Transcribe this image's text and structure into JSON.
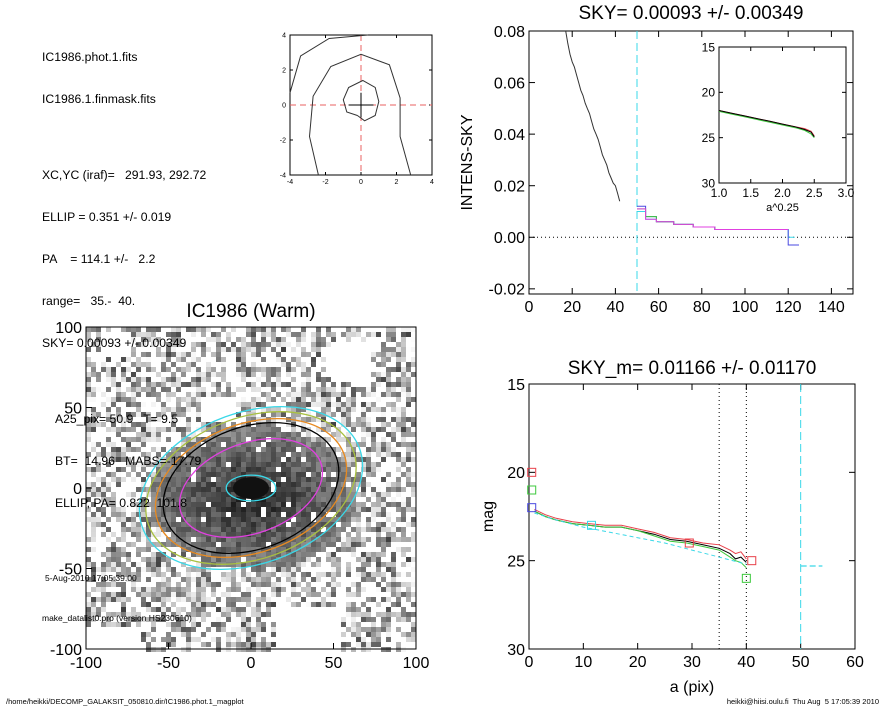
{
  "info": {
    "file1": "IC1986.phot.1.fits",
    "file2": "IC1986.1.finmask.fits",
    "xcyc": "XC,YC (iraf)=   291.93, 292.72",
    "ellip": "ELLIP = 0.351 +/- 0.019",
    "pa": "PA    = 114.1 +/-   2.2",
    "range": "range=   35.-  40.",
    "sky": "SKY= 0.00093 +/- 0.00349",
    "a25": "A25_pix= 50.9   T= 9.5",
    "bt": "BT=  14.96   MABS=-17.79",
    "ellip_pa": "ELLIP, PA= 0.822  101.8",
    "date": "5-Aug-2010 17:05:39.00",
    "program": "make_datalist0.pro (version HS230610)"
  },
  "footer": {
    "path": "/home/heikki/DECOMP_GALAKSIT_050810.dir/IC1986.phot.1_magplot",
    "user": "heikki@hiisi.oulu.fi  Thu Aug  5 17:05:39 2010"
  },
  "colors": {
    "cyan": "#3ad8e8",
    "red": "#e8404a",
    "green": "#3cc83c",
    "blue": "#4a4ae0",
    "orange": "#e88a20",
    "magenta": "#e040e0",
    "olive": "#a8c040",
    "gray": "#777777"
  },
  "chart_data": [
    {
      "id": "center-contour",
      "type": "line",
      "xlim": [
        -4,
        4
      ],
      "ylim": [
        -4,
        4
      ],
      "xticks": [
        "-4",
        "-2",
        "0",
        "2",
        "4"
      ],
      "yticks": [
        "-4",
        "-2",
        "0",
        "2",
        "4"
      ],
      "crosshair": [
        0,
        0
      ],
      "contours": [
        [
          [
            -0.2,
            -0.6
          ],
          [
            -0.8,
            -0.4
          ],
          [
            -1.0,
            0.3
          ],
          [
            -0.7,
            1.0
          ],
          [
            0.1,
            1.4
          ],
          [
            0.8,
            1.0
          ],
          [
            1.0,
            0.2
          ],
          [
            0.8,
            -0.6
          ],
          [
            0.2,
            -0.9
          ],
          [
            -0.2,
            -0.6
          ]
        ],
        [
          [
            -2.4,
            -4.0
          ],
          [
            -2.9,
            -1.8
          ],
          [
            -2.7,
            0.5
          ],
          [
            -1.7,
            2.2
          ],
          [
            0.0,
            2.9
          ],
          [
            1.6,
            2.3
          ],
          [
            2.2,
            0.4
          ],
          [
            2.2,
            -1.8
          ],
          [
            2.8,
            -4.0
          ]
        ],
        [
          [
            -4.0,
            0.7
          ],
          [
            -3.4,
            2.8
          ],
          [
            -1.8,
            3.8
          ],
          [
            0.4,
            4.0
          ]
        ]
      ]
    },
    {
      "id": "intensity-profile",
      "type": "line",
      "title": "SKY= 0.00093 +/- 0.00349",
      "xlabel": "",
      "ylabel": "INTENS-SKY",
      "xlim": [
        0,
        150
      ],
      "ylim": [
        -0.022,
        0.08
      ],
      "xticks": [
        "0",
        "20",
        "40",
        "60",
        "80",
        "100",
        "120",
        "140"
      ],
      "yticks": [
        "-0.02",
        "0.00",
        "0.02",
        "0.04",
        "0.06",
        "0.08"
      ],
      "sky_cut_x": 50,
      "profile": {
        "x": [
          17,
          18,
          19,
          20,
          21,
          22,
          23,
          24,
          25,
          26,
          27,
          28,
          29,
          30,
          31,
          32,
          33,
          34,
          35,
          36,
          37,
          38,
          39,
          40,
          41,
          42
        ],
        "y": [
          0.08,
          0.075,
          0.071,
          0.068,
          0.066,
          0.063,
          0.06,
          0.057,
          0.055,
          0.052,
          0.05,
          0.048,
          0.045,
          0.042,
          0.04,
          0.038,
          0.035,
          0.032,
          0.03,
          0.028,
          0.025,
          0.023,
          0.021,
          0.02,
          0.017,
          0.014
        ]
      },
      "series": [
        {
          "color": "cyan",
          "x": [
            50,
            54,
            54,
            59,
            59,
            67,
            67,
            76,
            76,
            86,
            86,
            95,
            95,
            105,
            105,
            120,
            120,
            123
          ],
          "y": [
            0.01,
            0.01,
            0.007,
            0.007,
            0.006,
            0.006,
            0.005,
            0.005,
            0.004,
            0.004,
            0.003,
            0.003,
            0.003,
            0.003,
            0.003,
            0.003,
            0.0,
            0.0
          ]
        },
        {
          "color": "blue",
          "x": [
            50,
            54,
            54,
            59,
            59,
            67,
            67,
            76,
            76,
            86,
            86,
            95,
            95,
            105,
            105,
            120,
            120,
            125
          ],
          "y": [
            0.012,
            0.012,
            0.008,
            0.008,
            0.006,
            0.006,
            0.005,
            0.005,
            0.004,
            0.004,
            0.003,
            0.003,
            0.003,
            0.003,
            0.003,
            0.003,
            -0.003,
            -0.003
          ]
        },
        {
          "color": "green",
          "x": [
            50,
            54,
            54,
            59,
            59,
            67,
            67,
            76,
            76,
            86,
            86,
            95,
            95,
            105,
            105,
            120
          ],
          "y": [
            0.011,
            0.011,
            0.008,
            0.008,
            0.006,
            0.006,
            0.005,
            0.005,
            0.004,
            0.004,
            0.003,
            0.003,
            0.003,
            0.003,
            0.003,
            0.003
          ]
        },
        {
          "color": "magenta",
          "x": [
            50,
            54,
            54,
            59,
            59,
            67,
            67,
            76,
            76,
            86,
            86,
            95,
            95,
            105,
            105,
            120
          ],
          "y": [
            0.011,
            0.011,
            0.007,
            0.007,
            0.006,
            0.006,
            0.005,
            0.005,
            0.004,
            0.004,
            0.003,
            0.003,
            0.003,
            0.003,
            0.003,
            0.003
          ]
        }
      ],
      "inset": {
        "xlabel": "a^0.25",
        "xlim": [
          1.0,
          3.0
        ],
        "ylim": [
          30,
          15
        ],
        "xticks": [
          "1.0",
          "1.5",
          "2.0",
          "2.5",
          "3.0"
        ],
        "yticks": [
          "15",
          "20",
          "25",
          "30"
        ],
        "series": [
          {
            "color": "red",
            "x": [
              1.0,
              1.2,
              1.4,
              1.6,
              1.8,
              2.0,
              2.2,
              2.35,
              2.45,
              2.5
            ],
            "y": [
              22.0,
              22.3,
              22.6,
              22.9,
              23.2,
              23.5,
              23.8,
              24.0,
              24.3,
              24.8
            ]
          },
          {
            "color": "green",
            "x": [
              1.0,
              1.2,
              1.4,
              1.6,
              1.8,
              2.0,
              2.2,
              2.35,
              2.45,
              2.5
            ],
            "y": [
              22.1,
              22.4,
              22.7,
              23.0,
              23.3,
              23.6,
              23.9,
              24.2,
              24.6,
              25.0
            ]
          },
          {
            "color": "black",
            "x": [
              1.0,
              1.2,
              1.4,
              1.6,
              1.8,
              2.0,
              2.2,
              2.35,
              2.45,
              2.5
            ],
            "y": [
              22.0,
              22.3,
              22.6,
              22.9,
              23.2,
              23.5,
              23.8,
              24.1,
              24.4,
              24.9
            ]
          }
        ]
      }
    },
    {
      "id": "galaxy-image",
      "type": "heatmap",
      "title": "IC1986 (Warm)",
      "xlim": [
        -100,
        100
      ],
      "ylim": [
        -100,
        100
      ],
      "xticks": [
        "-100",
        "-50",
        "0",
        "50",
        "100"
      ],
      "yticks": [
        "-100",
        "-50",
        "0",
        "50",
        "100"
      ],
      "ellipses": [
        {
          "color": "cyan",
          "a": 15,
          "b": 8,
          "pa": 0
        },
        {
          "color": "magenta",
          "a": 45,
          "b": 28,
          "pa": -20
        },
        {
          "color": "black",
          "a": 55,
          "b": 38,
          "pa": -20
        },
        {
          "color": "orange",
          "a": 60,
          "b": 40,
          "pa": -20
        },
        {
          "color": "olive",
          "a": 66,
          "b": 44,
          "pa": -20
        },
        {
          "color": "cyan",
          "a": 70,
          "b": 47,
          "pa": -20
        }
      ]
    },
    {
      "id": "magnitude-profile",
      "type": "line",
      "title": "SKY_m=  0.01166 +/- 0.01170",
      "xlabel": "a (pix)",
      "ylabel": "mag",
      "xlim": [
        0,
        60
      ],
      "ylim": [
        30,
        15
      ],
      "xticks": [
        "0",
        "10",
        "20",
        "30",
        "40",
        "50",
        "60"
      ],
      "yticks": [
        "15",
        "20",
        "25",
        "30"
      ],
      "range_lines": [
        35,
        40
      ],
      "sky_cut_x": 50,
      "series": [
        {
          "color": "black",
          "x": [
            1,
            3,
            5,
            8,
            11,
            14,
            17,
            20,
            23,
            26,
            29,
            32,
            35,
            37,
            38,
            39,
            40
          ],
          "y": [
            22.2,
            22.5,
            22.7,
            22.9,
            23.0,
            23.1,
            23.1,
            23.3,
            23.5,
            23.8,
            23.9,
            24.1,
            24.3,
            24.6,
            24.9,
            24.8,
            25.1
          ]
        },
        {
          "color": "red",
          "x": [
            1,
            3,
            5,
            8,
            11,
            14,
            17,
            20,
            23,
            26,
            29,
            32,
            35,
            37,
            38,
            39,
            40
          ],
          "y": [
            22.1,
            22.4,
            22.6,
            22.8,
            22.9,
            23.0,
            23.0,
            23.2,
            23.4,
            23.7,
            23.8,
            24.0,
            24.1,
            24.4,
            24.6,
            24.5,
            24.9
          ]
        },
        {
          "color": "green",
          "x": [
            1,
            3,
            5,
            8,
            11,
            14,
            17,
            20,
            23,
            26,
            29,
            32,
            35,
            37,
            38,
            39,
            40
          ],
          "y": [
            22.2,
            22.5,
            22.7,
            22.9,
            23.0,
            23.1,
            23.1,
            23.3,
            23.6,
            23.9,
            24.0,
            24.2,
            24.4,
            24.8,
            25.0,
            25.1,
            25.4
          ]
        },
        {
          "color": "cyan",
          "dashed": true,
          "x": [
            1,
            5,
            10,
            15,
            20,
            25,
            30,
            35,
            40
          ],
          "y": [
            22.3,
            22.7,
            23.1,
            23.4,
            23.7,
            24.0,
            24.4,
            24.8,
            25.2
          ]
        }
      ],
      "markers": [
        {
          "color": "red",
          "x": 0.5,
          "y": 20.0
        },
        {
          "color": "green",
          "x": 0.5,
          "y": 21.0
        },
        {
          "color": "blue",
          "x": 0.5,
          "y": 22.0
        },
        {
          "color": "cyan",
          "x": 11.5,
          "y": 23.0
        },
        {
          "color": "red",
          "x": 29.5,
          "y": 24.0
        },
        {
          "color": "red",
          "x": 41.0,
          "y": 25.0
        },
        {
          "color": "green",
          "x": 40.0,
          "y": 26.0
        }
      ],
      "sky_segment": {
        "x": [
          50,
          54
        ],
        "y": 25.3
      }
    }
  ]
}
